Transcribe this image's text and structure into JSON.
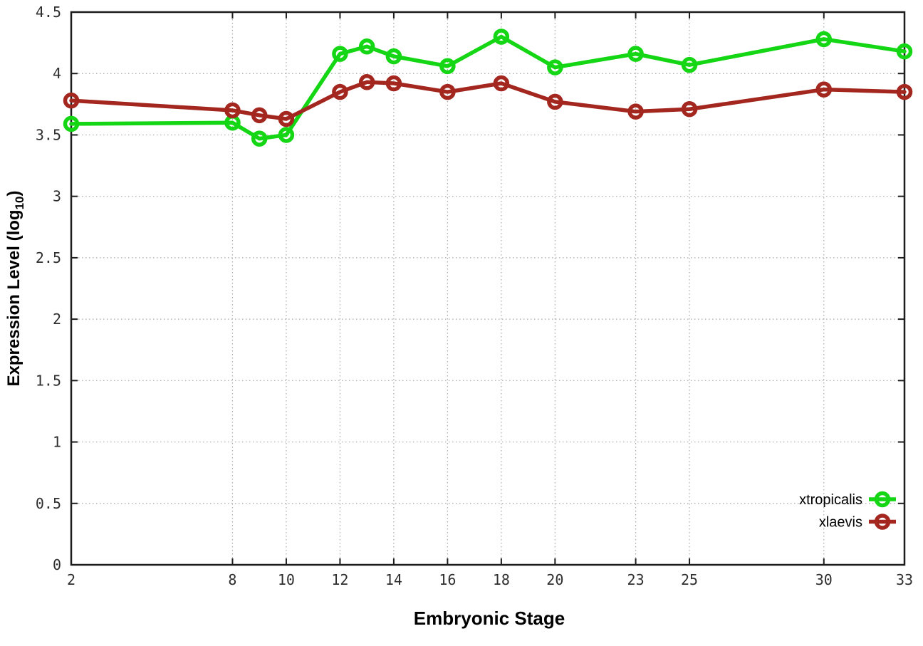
{
  "chart_data": {
    "type": "line",
    "title": "",
    "xlabel": "Embryonic Stage",
    "ylabel_parts": {
      "prefix": "Expression Level (log",
      "sub": "10",
      "suffix": ")"
    },
    "x": [
      2,
      8,
      9,
      10,
      12,
      13,
      14,
      16,
      18,
      20,
      23,
      25,
      30,
      33
    ],
    "xlim": [
      2,
      33
    ],
    "ylim": [
      0,
      4.5
    ],
    "xtick_values": [
      2,
      8,
      10,
      12,
      14,
      16,
      18,
      20,
      23,
      25,
      30,
      33
    ],
    "xtick_labels": [
      "2",
      "8",
      "10",
      "12",
      "14",
      "16",
      "18",
      "20",
      "23",
      "25",
      "30",
      "33"
    ],
    "ytick_values": [
      0,
      0.5,
      1,
      1.5,
      2,
      2.5,
      3,
      3.5,
      4,
      4.5
    ],
    "ytick_labels": [
      "0",
      "0.5",
      "1",
      "1.5",
      "2",
      "2.5",
      "3",
      "3.5",
      "4",
      "4.5"
    ],
    "grid": true,
    "legend_position": "bottom-right",
    "series": [
      {
        "name": "xtropicalis",
        "color": "#15d615",
        "values": [
          3.59,
          3.6,
          3.47,
          3.5,
          4.16,
          4.22,
          4.14,
          4.06,
          4.3,
          4.05,
          4.16,
          4.07,
          4.28,
          4.18
        ]
      },
      {
        "name": "xlaevis",
        "color": "#a3271f",
        "values": [
          3.78,
          3.7,
          3.66,
          3.63,
          3.85,
          3.93,
          3.92,
          3.85,
          3.92,
          3.77,
          3.69,
          3.71,
          3.87,
          3.85
        ]
      }
    ],
    "style": {
      "grid_color": "#a8a8a8",
      "border_color": "#1c1c1c",
      "tick_text_color": "#2e2e2e"
    }
  }
}
